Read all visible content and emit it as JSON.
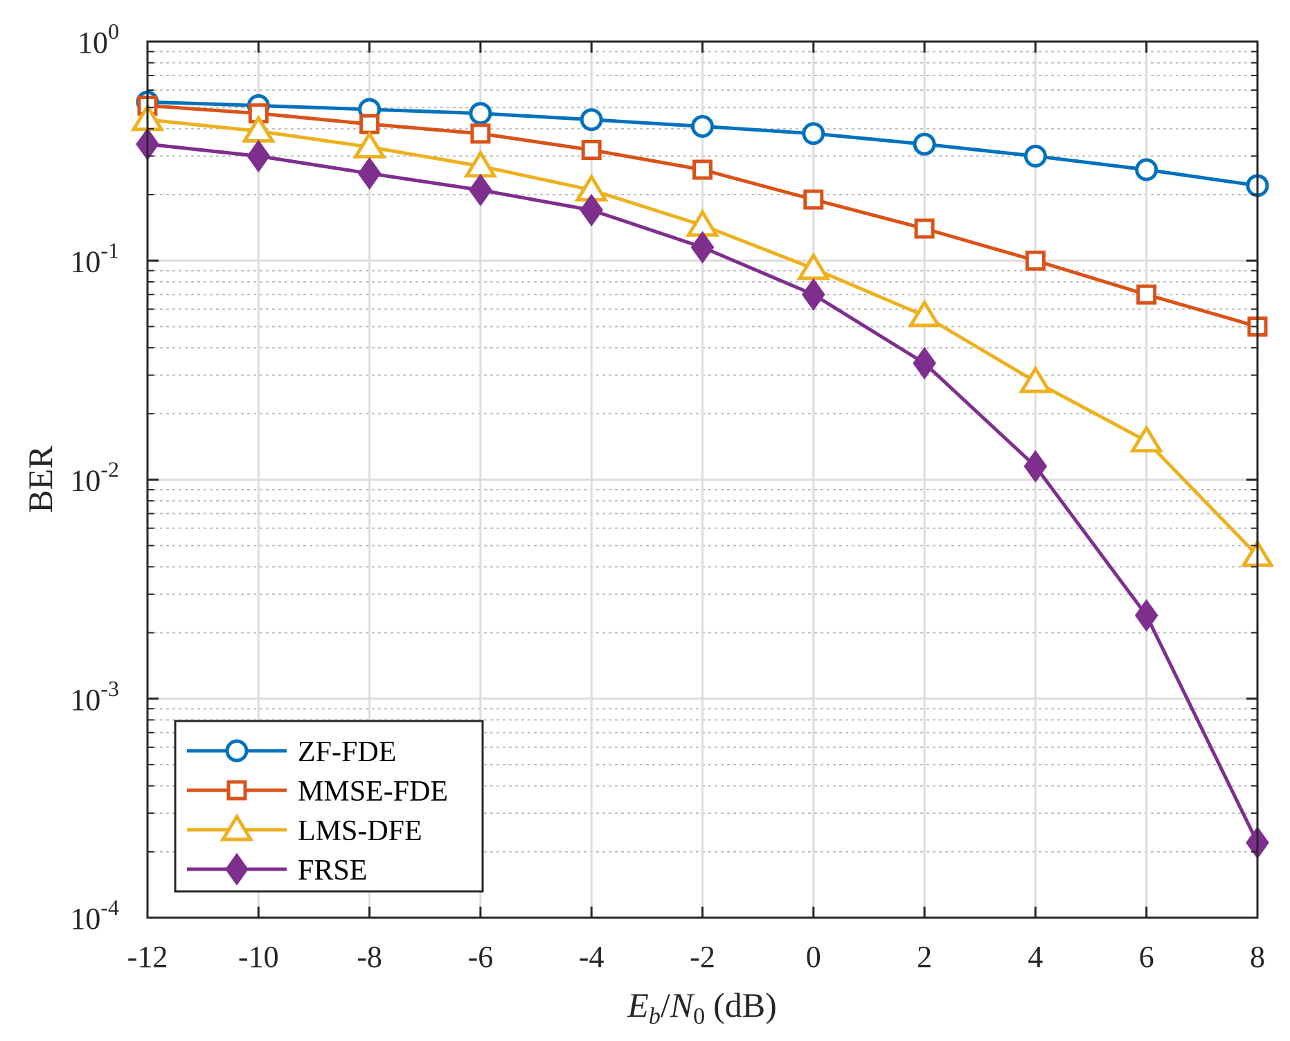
{
  "chart_data": {
    "type": "line",
    "title": "",
    "xlabel": "E_b/N_0 (dB)",
    "xlabel_parts": {
      "E": "E",
      "b": "b",
      "slash": "/",
      "N": "N",
      "zero": "0",
      "unit": "(dB)"
    },
    "ylabel": "BER",
    "x": [
      -12,
      -10,
      -8,
      -6,
      -4,
      -2,
      0,
      2,
      4,
      6,
      8
    ],
    "xlim": [
      -12,
      8
    ],
    "ylim": [
      0.0001,
      1
    ],
    "yscale": "log",
    "grid": true,
    "xticks": [
      "-12",
      "-10",
      "-8",
      "-6",
      "-4",
      "-2",
      "0",
      "2",
      "4",
      "6",
      "8"
    ],
    "yticks": [
      {
        "base": "10",
        "exp": "-4",
        "value": 0.0001
      },
      {
        "base": "10",
        "exp": "-3",
        "value": 0.001
      },
      {
        "base": "10",
        "exp": "-2",
        "value": 0.01
      },
      {
        "base": "10",
        "exp": "-1",
        "value": 0.1
      },
      {
        "base": "10",
        "exp": "0",
        "value": 1
      }
    ],
    "legend_position": "bottom-left",
    "series": [
      {
        "name": "ZF-FDE",
        "color": "#0072BD",
        "marker": "circle",
        "values": [
          0.53,
          0.51,
          0.49,
          0.47,
          0.44,
          0.41,
          0.38,
          0.34,
          0.3,
          0.26,
          0.22
        ]
      },
      {
        "name": "MMSE-FDE",
        "color": "#D95319",
        "marker": "square",
        "values": [
          0.51,
          0.47,
          0.42,
          0.38,
          0.32,
          0.26,
          0.19,
          0.14,
          0.1,
          0.07,
          0.05
        ]
      },
      {
        "name": "LMS-DFE",
        "color": "#EDB120",
        "marker": "triangle",
        "values": [
          0.44,
          0.39,
          0.33,
          0.27,
          0.21,
          0.145,
          0.092,
          0.056,
          0.028,
          0.015,
          0.0045
        ]
      },
      {
        "name": "FRSE",
        "color": "#7E2F8E",
        "marker": "diamond",
        "values": [
          0.34,
          0.3,
          0.25,
          0.21,
          0.17,
          0.115,
          0.07,
          0.034,
          0.0115,
          0.0024,
          0.00022
        ]
      }
    ]
  }
}
